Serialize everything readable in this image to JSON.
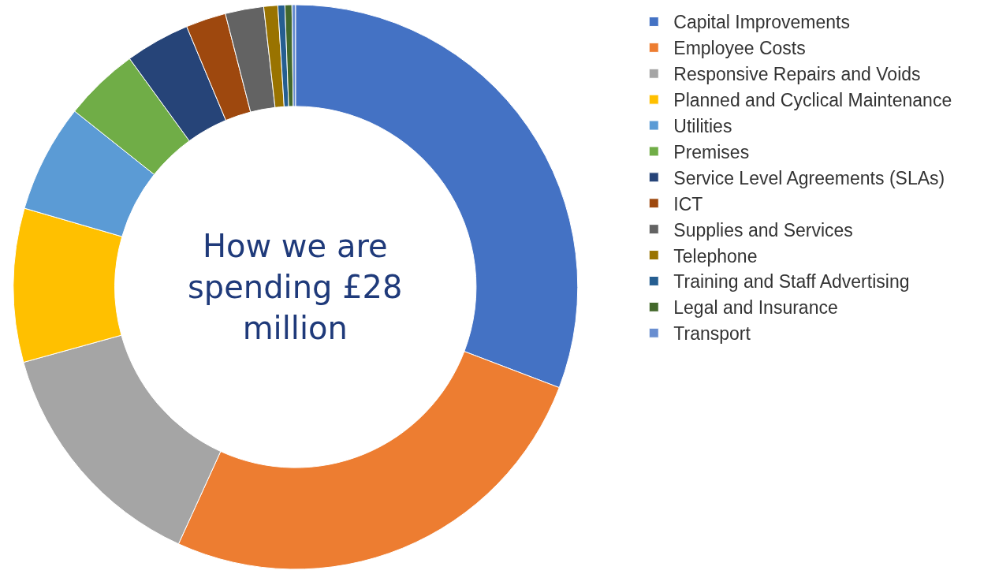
{
  "chart_data": {
    "type": "donut",
    "title": "How we are spending £28 million",
    "categories": [
      "Capital Improvements",
      "Employee Costs",
      "Responsive Repairs and Voids",
      "Planned and Cyclical Maintenance",
      "Utilities",
      "Premises",
      "Service Level Agreements (SLAs)",
      "ICT",
      "Supplies and Services",
      "Telephone",
      "Training and Staff Advertising",
      "Legal and Insurance",
      "Transport"
    ],
    "values": [
      30.8,
      26.0,
      13.9,
      8.8,
      6.2,
      4.3,
      3.7,
      2.3,
      2.2,
      0.8,
      0.4,
      0.4,
      0.2
    ],
    "colors": [
      "#4472c4",
      "#ed7d31",
      "#a5a5a5",
      "#ffc000",
      "#5b9bd5",
      "#70ad47",
      "#264478",
      "#9e480e",
      "#636363",
      "#997300",
      "#255e91",
      "#43682b",
      "#698ed0"
    ],
    "legend": "right"
  }
}
